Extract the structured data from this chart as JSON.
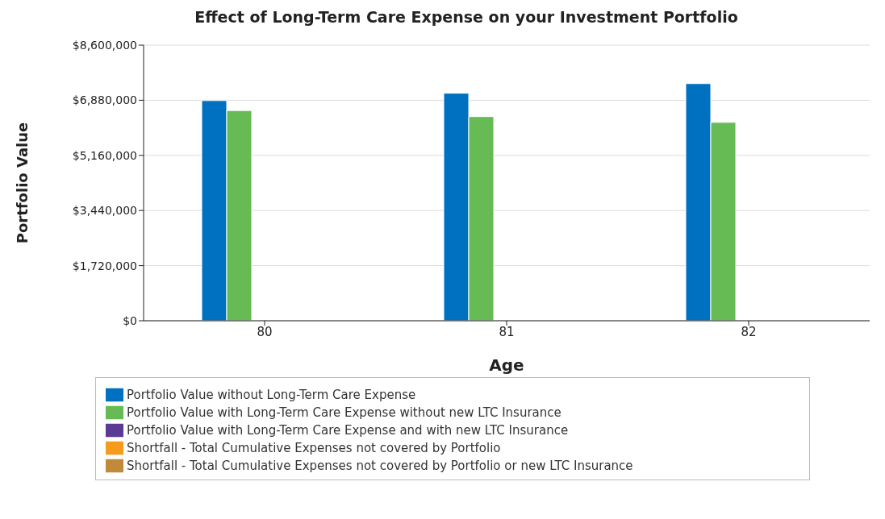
{
  "chart_data": {
    "type": "bar",
    "title": "Effect of Long-Term Care Expense on your Investment Portfolio",
    "xlabel": "Age",
    "ylabel": "Portfolio Value",
    "categories": [
      "80",
      "81",
      "82"
    ],
    "series": [
      {
        "name": "Portfolio Value without Long-Term Care Expense",
        "color": "#0070c0",
        "values": [
          6870000,
          7100000,
          7400000
        ]
      },
      {
        "name": "Portfolio Value with Long-Term Care Expense without new LTC Insurance",
        "color": "#66bb55",
        "values": [
          6560000,
          6370000,
          6190000
        ]
      },
      {
        "name": "Portfolio Value with Long-Term Care Expense and with new LTC Insurance",
        "color": "#5b3a96",
        "values": [
          null,
          null,
          null
        ]
      },
      {
        "name": "Shortfall - Total Cumulative Expenses not covered by Portfolio",
        "color": "#f59a1a",
        "values": [
          null,
          null,
          null
        ]
      },
      {
        "name": "Shortfall - Total Cumulative Expenses not covered by Portfolio or new LTC Insurance",
        "color": "#c08a3a",
        "values": [
          null,
          null,
          null
        ]
      }
    ],
    "ylim": [
      0,
      8600000
    ],
    "yticks": [
      {
        "value": 0,
        "label": "$0"
      },
      {
        "value": 1720000,
        "label": "$1,720,000"
      },
      {
        "value": 3440000,
        "label": "$3,440,000"
      },
      {
        "value": 5160000,
        "label": "$5,160,000"
      },
      {
        "value": 6880000,
        "label": "$6,880,000"
      },
      {
        "value": 8600000,
        "label": "$8,600,000"
      }
    ],
    "grid": "y",
    "legend": "bottom"
  }
}
